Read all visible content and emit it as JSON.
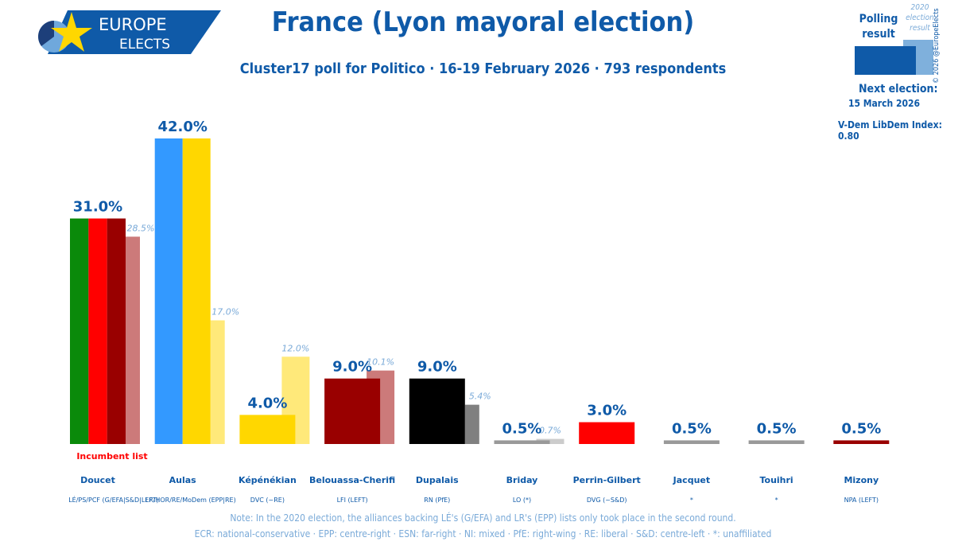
{
  "header": {
    "title": "France (Lyon mayoral election)",
    "subtitle": "Cluster17 poll for Politico · 16-19 February 2026 · 793 respondents",
    "logo_line1": "EUROPE",
    "logo_line2": "ELECTS"
  },
  "legend": {
    "polling": "Polling result",
    "election_2020": "2020 election result",
    "copyright": "© 2026 @EuropeElects"
  },
  "info": {
    "next_election_label": "Next election:",
    "next_election_date": "15 March 2026",
    "vdem": "V-Dem LibDem Index: 0.80"
  },
  "incumbent_label": "Incumbent list",
  "notes": [
    "Note: In the 2020 election, the alliances backing LÉ's (G/EFA) and LR's (EPP) lists only took place in the second round.",
    "ECR: national-conservative · EPP: centre-right · ESN: far-right · NI: mixed · PfE: right-wing · RE: liberal · S&D: centre-left · *: unaffiliated"
  ],
  "chart_data": {
    "type": "bar",
    "ylim": [
      0,
      42
    ],
    "categories": [
      "Doucet",
      "Aulas",
      "Képénékian",
      "Belouassa-Cherifi",
      "Dupalais",
      "Briday",
      "Perrin-Gilbert",
      "Jacquet",
      "Touihri",
      "Mizony"
    ],
    "parties": [
      "LÉ/PS/PCF (G/EFA|S&D|LEFT)",
      "LR/HOR/RE/MoDem (EPP|RE)",
      "DVC (~RE)",
      "LFI (LEFT)",
      "RN (PfE)",
      "LO (*)",
      "DVG (~S&D)",
      "*",
      "*",
      "NPA (LEFT)"
    ],
    "series": [
      {
        "name": "Polling result",
        "values": [
          31.0,
          42.0,
          4.0,
          9.0,
          9.0,
          0.5,
          3.0,
          0.5,
          0.5,
          0.5
        ],
        "labels": [
          "31.0%",
          "42.0%",
          "4.0%",
          "9.0%",
          "9.0%",
          "0.5%",
          "3.0%",
          "0.5%",
          "0.5%",
          "0.5%"
        ]
      },
      {
        "name": "2020 election result",
        "values": [
          28.5,
          17.0,
          12.0,
          10.1,
          5.4,
          0.7,
          null,
          null,
          null,
          null
        ],
        "labels": [
          "28.5%",
          "17.0%",
          "12.0%",
          "10.1%",
          "5.4%",
          "0.7%",
          null,
          null,
          null,
          null
        ]
      }
    ],
    "colors": [
      [
        "#0a8a0a",
        "#ff0000",
        "#990000"
      ],
      [
        "#3399ff",
        "#ffd700"
      ],
      [
        "#ffd700"
      ],
      [
        "#990000"
      ],
      [
        "#000000"
      ],
      [
        "#999999"
      ],
      [
        "#ff0000"
      ],
      [
        "#999999"
      ],
      [
        "#999999"
      ],
      [
        "#990000"
      ]
    ],
    "colors_2020": [
      "#cc7a7a",
      "#ffe97a",
      "#ffe97a",
      "#cc7a7a",
      "#808080",
      "#cccccc",
      null,
      null,
      null,
      null
    ],
    "incumbent_index": 0
  }
}
